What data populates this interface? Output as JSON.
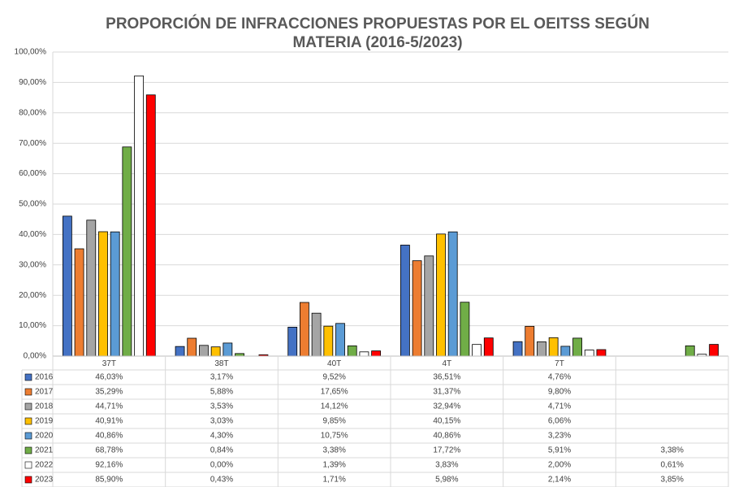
{
  "chart_data": {
    "type": "bar",
    "title": "PROPORCIÓN DE INFRACCIONES PROPUESTAS POR EL OEITSS SEGÚN MATERIA (2016-5/2023)",
    "categories": [
      "37T",
      "38T",
      "40T",
      "4T",
      "7T",
      null
    ],
    "ylim": [
      0,
      100
    ],
    "yticks": [
      {
        "value": 0,
        "label": "0,00%"
      },
      {
        "value": 10,
        "label": "10,00%"
      },
      {
        "value": 20,
        "label": "20,00%"
      },
      {
        "value": 30,
        "label": "30,00%"
      },
      {
        "value": 40,
        "label": "40,00%"
      },
      {
        "value": 50,
        "label": "50,00%"
      },
      {
        "value": 60,
        "label": "60,00%"
      },
      {
        "value": 70,
        "label": "70,00%"
      },
      {
        "value": 80,
        "label": "80,00%"
      },
      {
        "value": 90,
        "label": "90,00%"
      },
      {
        "value": 100,
        "label": "100,00%"
      }
    ],
    "grid": true,
    "series": [
      {
        "name": "2016",
        "color": "#4472c4",
        "values": [
          46.03,
          3.17,
          9.52,
          36.51,
          4.76,
          null
        ],
        "value_labels": [
          "46,03%",
          "3,17%",
          "9,52%",
          "36,51%",
          "4,76%",
          null
        ]
      },
      {
        "name": "2017",
        "color": "#ed7d31",
        "values": [
          35.29,
          5.88,
          17.65,
          31.37,
          9.8,
          null
        ],
        "value_labels": [
          "35,29%",
          "5,88%",
          "17,65%",
          "31,37%",
          "9,80%",
          null
        ]
      },
      {
        "name": "2018",
        "color": "#a5a5a5",
        "values": [
          44.71,
          3.53,
          14.12,
          32.94,
          4.71,
          null
        ],
        "value_labels": [
          "44,71%",
          "3,53%",
          "14,12%",
          "32,94%",
          "4,71%",
          null
        ]
      },
      {
        "name": "2019",
        "color": "#ffc000",
        "values": [
          40.91,
          3.03,
          9.85,
          40.15,
          6.06,
          null
        ],
        "value_labels": [
          "40,91%",
          "3,03%",
          "9,85%",
          "40,15%",
          "6,06%",
          null
        ]
      },
      {
        "name": "2020",
        "color": "#5b9bd5",
        "values": [
          40.86,
          4.3,
          10.75,
          40.86,
          3.23,
          null
        ],
        "value_labels": [
          "40,86%",
          "4,30%",
          "10,75%",
          "40,86%",
          "3,23%",
          null
        ]
      },
      {
        "name": "2021",
        "color": "#70ad47",
        "values": [
          68.78,
          0.84,
          3.38,
          17.72,
          5.91,
          3.38
        ],
        "value_labels": [
          "68,78%",
          "0,84%",
          "3,38%",
          "17,72%",
          "5,91%",
          "3,38%"
        ]
      },
      {
        "name": "2022",
        "color": "#ffffff",
        "values": [
          92.16,
          0.0,
          1.39,
          3.83,
          2.0,
          0.61
        ],
        "value_labels": [
          "92,16%",
          "0,00%",
          "1,39%",
          "3,83%",
          "2,00%",
          "0,61%"
        ]
      },
      {
        "name": "2023",
        "color": "#ff0000",
        "values": [
          85.9,
          0.43,
          1.71,
          5.98,
          2.14,
          3.85
        ],
        "value_labels": [
          "85,90%",
          "0,43%",
          "1,71%",
          "5,98%",
          "2,14%",
          "3,85%"
        ]
      }
    ]
  }
}
